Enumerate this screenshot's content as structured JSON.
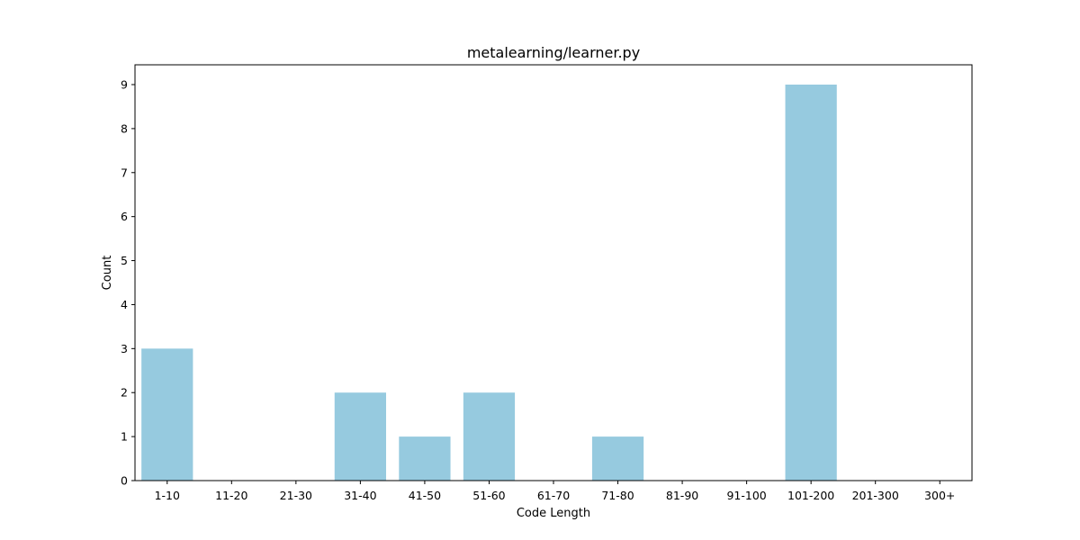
{
  "chart_data": {
    "type": "bar",
    "title": "metalearning/learner.py",
    "xlabel": "Code Length",
    "ylabel": "Count",
    "categories": [
      "1-10",
      "11-20",
      "21-30",
      "31-40",
      "41-50",
      "51-60",
      "61-70",
      "71-80",
      "81-90",
      "91-100",
      "101-200",
      "201-300",
      "300+"
    ],
    "values": [
      3,
      0,
      0,
      2,
      1,
      2,
      0,
      1,
      0,
      0,
      9,
      0,
      0
    ],
    "yticks": [
      0,
      1,
      2,
      3,
      4,
      5,
      6,
      7,
      8,
      9
    ],
    "ylim": [
      0,
      9.45
    ],
    "bar_color": "#96cadf",
    "grid": false,
    "legend": "none"
  }
}
